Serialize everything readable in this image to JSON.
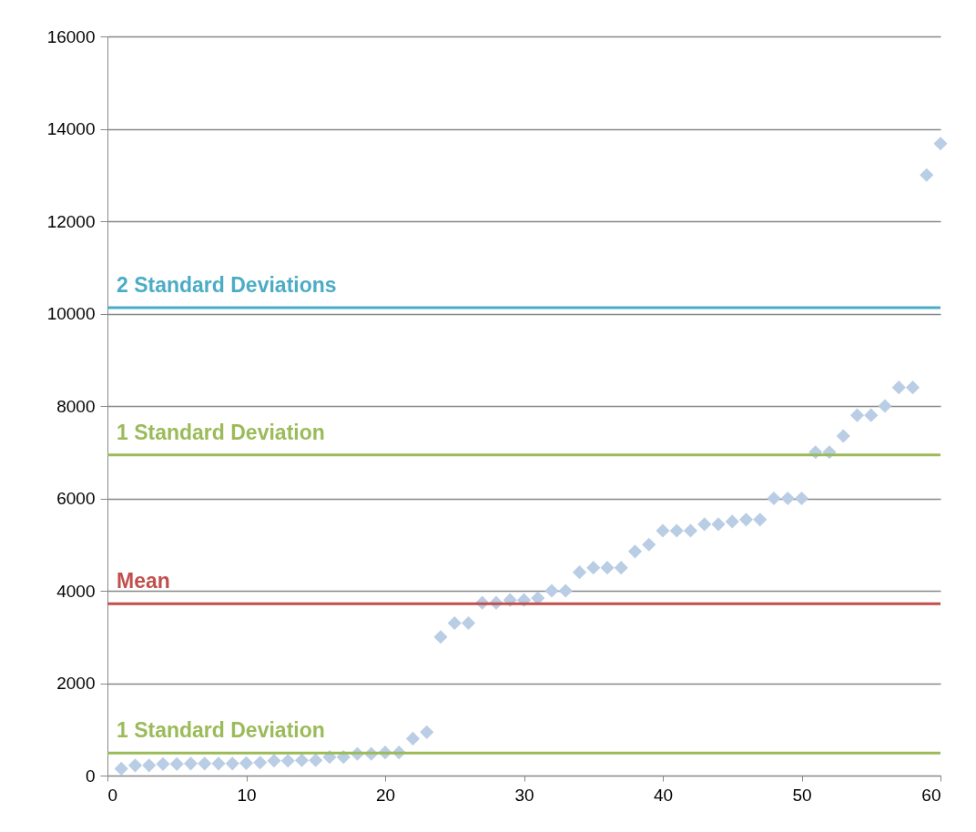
{
  "chart_data": {
    "type": "scatter",
    "marker": "diamond",
    "grid": "y",
    "x": [
      1,
      2,
      3,
      4,
      5,
      6,
      7,
      8,
      9,
      10,
      11,
      12,
      13,
      14,
      15,
      16,
      17,
      18,
      19,
      20,
      21,
      22,
      23,
      24,
      25,
      26,
      27,
      28,
      29,
      30,
      31,
      32,
      33,
      34,
      35,
      36,
      37,
      38,
      39,
      40,
      41,
      42,
      43,
      44,
      45,
      46,
      47,
      48,
      49,
      50,
      51,
      52,
      53,
      54,
      55,
      56,
      57,
      58,
      59,
      60
    ],
    "series": [
      {
        "color": "#b9cde5",
        "values": [
          150,
          220,
          220,
          250,
          250,
          260,
          260,
          260,
          260,
          270,
          280,
          320,
          320,
          330,
          330,
          400,
          400,
          470,
          470,
          500,
          500,
          800,
          940,
          3000,
          3300,
          3300,
          3740,
          3740,
          3800,
          3800,
          3840,
          4000,
          4000,
          4400,
          4500,
          4500,
          4500,
          4850,
          5000,
          5300,
          5300,
          5300,
          5440,
          5440,
          5500,
          5540,
          5540,
          6000,
          6000,
          6000,
          7000,
          7000,
          7350,
          7800,
          7800,
          8000,
          8400,
          8400,
          13000,
          13680
        ]
      }
    ],
    "xlim": [
      0,
      60
    ],
    "xticks": [
      0,
      10,
      20,
      30,
      40,
      50,
      60
    ],
    "ylim": [
      0,
      16000
    ],
    "yticks": [
      0,
      2000,
      4000,
      6000,
      8000,
      10000,
      12000,
      14000,
      16000
    ],
    "ref_lines": [
      {
        "axis": "y",
        "value": 10130,
        "label": "2 Standard Deviations",
        "color": "#4bacc6"
      },
      {
        "axis": "y",
        "value": 6940,
        "label": "1 Standard Deviation",
        "color": "#9bbb59"
      },
      {
        "axis": "y",
        "value": 3720,
        "label": "Mean",
        "color": "#c0504d"
      },
      {
        "axis": "y",
        "value": 490,
        "label": "1 Standard Deviation",
        "color": "#9bbb59"
      }
    ]
  }
}
